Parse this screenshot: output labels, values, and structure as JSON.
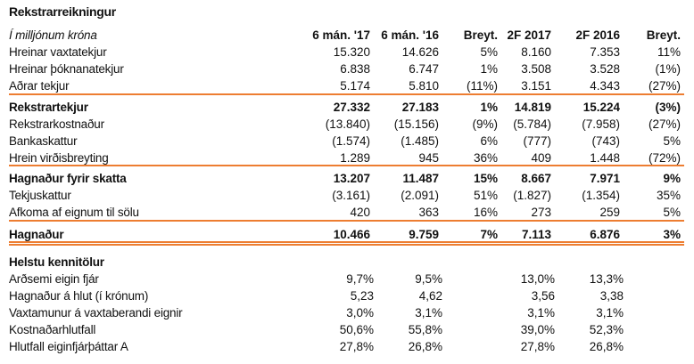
{
  "title": "Rekstrarreikningur",
  "header": {
    "label": "Í milljónum króna",
    "columns": [
      "6 mán. '17",
      "6 mán. '16",
      "Breyt.",
      "2F 2017",
      "2F 2016",
      "Breyt."
    ]
  },
  "groups": [
    [
      {
        "label": "Hreinar vaxtatekjur",
        "values": [
          "15.320",
          "14.626",
          "5%",
          "8.160",
          "7.353",
          "11%"
        ]
      },
      {
        "label": "Hreinar þóknanatekjur",
        "values": [
          "6.838",
          "6.747",
          "1%",
          "3.508",
          "3.528",
          "(1%)"
        ]
      },
      {
        "label": "Aðrar tekjur",
        "values": [
          "5.174",
          "5.810",
          "(11%)",
          "3.151",
          "4.343",
          "(27%)"
        ]
      }
    ],
    [
      {
        "label": "Rekstrartekjur",
        "bold": true,
        "values": [
          "27.332",
          "27.183",
          "1%",
          "14.819",
          "15.224",
          "(3%)"
        ]
      },
      {
        "label": "Rekstrarkostnaður",
        "values": [
          "(13.840)",
          "(15.156)",
          "(9%)",
          "(5.784)",
          "(7.958)",
          "(27%)"
        ]
      },
      {
        "label": "Bankaskattur",
        "values": [
          "(1.574)",
          "(1.485)",
          "6%",
          "(777)",
          "(743)",
          "5%"
        ]
      },
      {
        "label": "Hrein virðisbreyting",
        "values": [
          "1.289",
          "945",
          "36%",
          "409",
          "1.448",
          "(72%)"
        ]
      }
    ],
    [
      {
        "label": "Hagnaður fyrir skatta",
        "bold": true,
        "values": [
          "13.207",
          "11.487",
          "15%",
          "8.667",
          "7.971",
          "9%"
        ]
      },
      {
        "label": "Tekjuskattur",
        "values": [
          "(3.161)",
          "(2.091)",
          "51%",
          "(1.827)",
          "(1.354)",
          "35%"
        ]
      },
      {
        "label": "Afkoma af eignum til sölu",
        "values": [
          "420",
          "363",
          "16%",
          "273",
          "259",
          "5%"
        ]
      }
    ],
    [
      {
        "label": "Hagnaður",
        "bold": true,
        "values": [
          "10.466",
          "9.759",
          "7%",
          "7.113",
          "6.876",
          "3%"
        ]
      }
    ]
  ],
  "kpi": {
    "title": "Helstu kennitölur",
    "rows": [
      {
        "label": "Arðsemi eigin fjár",
        "values": [
          "9,7%",
          "9,5%",
          "13,0%",
          "13,3%"
        ]
      },
      {
        "label": "Hagnaður á hlut (í krónum)",
        "values": [
          "5,23",
          "4,62",
          "3,56",
          "3,38"
        ]
      },
      {
        "label": "Vaxtamunur á vaxtaberandi eignir",
        "values": [
          "3,0%",
          "3,1%",
          "3,1%",
          "3,1%"
        ]
      },
      {
        "label": "Kostnaðarhlutfall",
        "values": [
          "50,6%",
          "55,8%",
          "39,0%",
          "52,3%"
        ]
      },
      {
        "label": "Hlutfall eiginfjárþáttar A",
        "values": [
          "27,8%",
          "26,8%",
          "27,8%",
          "26,8%"
        ]
      }
    ]
  },
  "colors": {
    "rule": "#ed7d31"
  }
}
